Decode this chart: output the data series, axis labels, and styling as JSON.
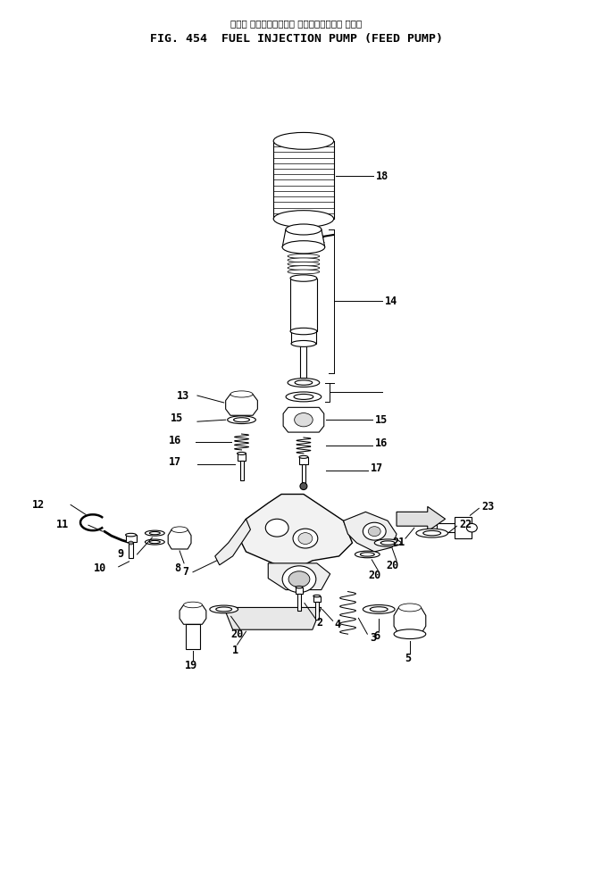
{
  "title_jp": "フェル インジェクション ポンプ　フィード ポンプ",
  "title_en": "FIG. 454  FUEL INJECTION PUMP (FEED PUMP)",
  "bg_color": "#ffffff",
  "line_color": "#000000",
  "fig_width": 6.64,
  "fig_height": 9.89,
  "dpi": 100
}
